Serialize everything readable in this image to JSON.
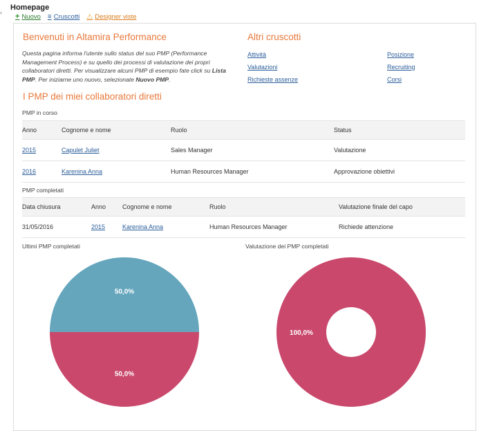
{
  "header": {
    "title": "Homepage",
    "toolbar": {
      "new_label": "Nuovo",
      "dashboards_label": "Cruscotti",
      "designer_label": "Designer viste"
    }
  },
  "welcome": {
    "title": "Benvenuti in Altamira Performance",
    "text_before": "Questa pagina informa l'utente sullo status del suo PMP (Performance Management Process) e su quello dei processi di valutazione dei propri collaboratori diretti. Per visualizzare alcuni PMP di esempio fate click su ",
    "bold_1": "Lista PMP",
    "text_middle": ". Per iniziarne uno nuovo, selezionate ",
    "bold_2": "Nuovo PMP",
    "text_after": "."
  },
  "other_dashboards": {
    "title": "Altri cruscotti",
    "links": [
      "Attività",
      "Valutazioni",
      "Richieste assenze",
      "Posizione",
      "Recruiting",
      "Corsi"
    ]
  },
  "pmp_section": {
    "title": "I PMP dei miei collaboratori diretti",
    "in_progress": {
      "label": "PMP in corso",
      "columns": [
        "Anno",
        "Cognome e nome",
        "Ruolo",
        "Status"
      ],
      "rows": [
        [
          "2015",
          "Capulet Juliet",
          "Sales Manager",
          "Valutazione"
        ],
        [
          "2016",
          "Karenina Anna",
          "Human Resources Manager",
          "Approvazione obiettivi"
        ]
      ]
    },
    "completed": {
      "label": "PMP completati",
      "columns": [
        "Data chiusura",
        "Anno",
        "Cognome e nome",
        "Ruolo",
        "Valutazione finale del capo"
      ],
      "rows": [
        [
          "31/05/2016",
          "2015",
          "Karenina Anna",
          "Human Resources Manager",
          "Richiede attenzione"
        ]
      ]
    }
  },
  "chart_data": [
    {
      "type": "pie",
      "title": "Ultimi PMP completati",
      "slices": [
        {
          "value": 50.0,
          "label": "50,0%",
          "color": "#65a6bd"
        },
        {
          "value": 50.0,
          "label": "50,0%",
          "color": "#c9486c"
        }
      ]
    },
    {
      "type": "pie",
      "donut": true,
      "title": "Valutazione dei PMP completati",
      "slices": [
        {
          "value": 100.0,
          "label": "100,0%",
          "color": "#c9486c"
        }
      ]
    }
  ]
}
